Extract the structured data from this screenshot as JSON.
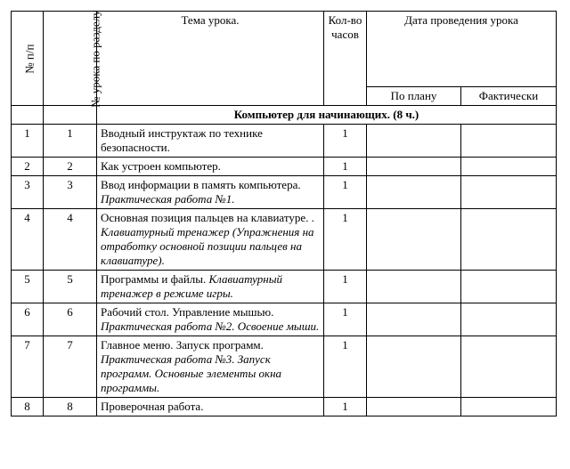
{
  "headers": {
    "num": "№ п/п",
    "lessonNum": "№ урока по разделу",
    "topic": "Тема урока.",
    "hours": "Кол-во часов",
    "date": "Дата проведения урока",
    "plan": "По плану",
    "fact": "Фактически"
  },
  "section": "Компьютер для начинающих. (8 ч.)",
  "rows": [
    {
      "n": "1",
      "ln": "1",
      "topic_plain": "Вводный инструктаж по технике безопасности.",
      "topic_italic": "",
      "hours": "1"
    },
    {
      "n": "2",
      "ln": "2",
      "topic_plain": "Как устроен компьютер.",
      "topic_italic": "",
      "hours": "1"
    },
    {
      "n": "3",
      "ln": "3",
      "topic_plain": "Ввод информации в память компьютера.",
      "topic_italic": "Практическая работа №1.",
      "hours": "1"
    },
    {
      "n": "4",
      "ln": "4",
      "topic_plain": "Основная позиция пальцев на клавиатуре. .",
      "topic_italic": "Клавиатурный тренажер (Упражнения на отработку основной позиции пальцев на клавиатуре).",
      "hours": "1"
    },
    {
      "n": "5",
      "ln": "5",
      "topic_plain": "Программы и файлы.",
      "topic_italic": "Клавиатурный тренажер в режиме игры.",
      "hours": "1"
    },
    {
      "n": "6",
      "ln": "6",
      "topic_plain": "Рабочий стол. Управление мышью.",
      "topic_italic": "Практическая работа №2. Освоение мыши.",
      "hours": "1"
    },
    {
      "n": "7",
      "ln": "7",
      "topic_plain": "Главное меню. Запуск программ.",
      "topic_italic": "Практическая работа №3. Запуск программ. Основные элементы окна программы.",
      "hours": "1"
    },
    {
      "n": "8",
      "ln": "8",
      "topic_plain": " Проверочная работа.",
      "topic_italic": "",
      "hours": "1"
    }
  ]
}
